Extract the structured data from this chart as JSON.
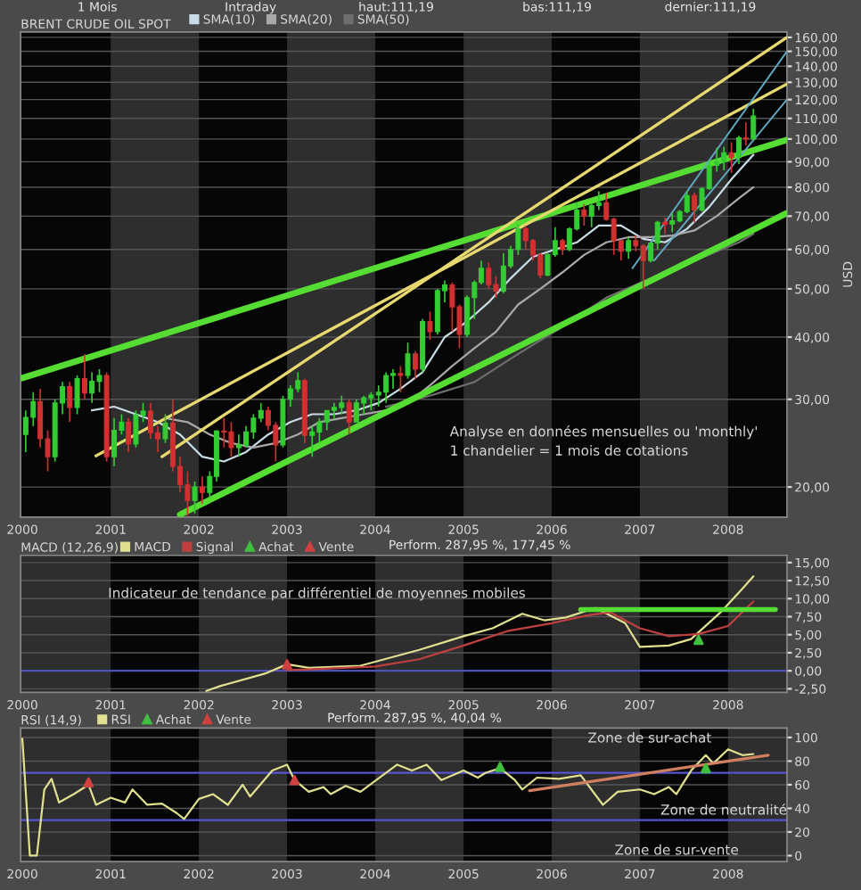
{
  "chart_data": [
    {
      "type": "candlestick",
      "title": "BRENT CRUDE OIL SPOT",
      "ylabel": "USD",
      "legend": "top left",
      "grid": "y",
      "log": true,
      "annotations": [
        "1 Mois",
        "Intraday",
        "haut:111,19",
        "bas:111,19",
        "dernier:111,19",
        "Analyse en données mensuelles ou 'monthly'",
        "1 chandelier = 1 mois de cotations"
      ],
      "xlim": [
        "1999-12-25",
        "2008-09-01"
      ],
      "xticks": [
        {
          "value": "2000-01-01",
          "label": "2000"
        },
        {
          "value": "2001-01-01",
          "label": "2001"
        },
        {
          "value": "2002-01-01",
          "label": "2002"
        },
        {
          "value": "2003-01-01",
          "label": "2003"
        },
        {
          "value": "2004-01-01",
          "label": "2004"
        },
        {
          "value": "2005-01-01",
          "label": "2005"
        },
        {
          "value": "2006-01-01",
          "label": "2006"
        },
        {
          "value": "2007-01-01",
          "label": "2007"
        },
        {
          "value": "2008-01-01",
          "label": "2008"
        }
      ],
      "ylim": [
        17.4,
        164
      ],
      "yticks": [
        {
          "value": 20,
          "label": "20,00"
        },
        {
          "value": 30,
          "label": "30,00"
        },
        {
          "value": 40,
          "label": "40,00"
        },
        {
          "value": 50,
          "label": "50,00"
        },
        {
          "value": 60,
          "label": "60,00"
        },
        {
          "value": 70,
          "label": "70,00"
        },
        {
          "value": 80,
          "label": "80,00"
        },
        {
          "value": 90,
          "label": "90,00"
        },
        {
          "value": 100,
          "label": "100,00"
        },
        {
          "value": 110,
          "label": "110,00"
        },
        {
          "value": 120,
          "label": "120,00"
        },
        {
          "value": 130,
          "label": "130,00"
        },
        {
          "value": 140,
          "label": "140,00"
        },
        {
          "value": 150,
          "label": "150,00"
        },
        {
          "value": 160,
          "label": "160,00"
        }
      ],
      "bands": [
        {
          "axis": "x",
          "from": "2001-01-01",
          "to": "2002-01-01",
          "color": "#2e2e2e"
        },
        {
          "axis": "x",
          "from": "2003-01-01",
          "to": "2004-01-01",
          "color": "#2e2e2e"
        },
        {
          "axis": "x",
          "from": "2005-01-01",
          "to": "2006-01-01",
          "color": "#2e2e2e"
        },
        {
          "axis": "x",
          "from": "2007-01-01",
          "to": "2008-01-01",
          "color": "#2e2e2e"
        }
      ],
      "colors": [
        "#33cc33",
        "#33cc33",
        "#d03030",
        "#d03030",
        "#33cc33",
        "#33cc33",
        "#d03030",
        "#33cc33",
        "#d03030",
        "#33cc33",
        "#33cc33",
        "#d03030",
        "#33cc33",
        "#33cc33",
        "#d03030",
        "#33cc33",
        "#33cc33",
        "#d03030",
        "#d03030",
        "#33cc33",
        "#d03030",
        "#d03030",
        "#d03030",
        "#33cc33",
        "#d03030",
        "#33cc33",
        "#33cc33",
        "#d03030",
        "#d03030",
        "#33cc33",
        "#33cc33",
        "#33cc33",
        "#33cc33",
        "#d03030",
        "#d03030",
        "#33cc33",
        "#33cc33",
        "#33cc33",
        "#d03030",
        "#33cc33",
        "#33cc33",
        "#33cc33",
        "#33cc33",
        "#33cc33",
        "#d03030",
        "#33cc33",
        "#33cc33",
        "#33cc33",
        "#33cc33",
        "#33cc33",
        "#33cc33",
        "#d03030",
        "#33cc33",
        "#d03030",
        "#33cc33",
        "#d03030",
        "#33cc33",
        "#33cc33",
        "#d03030",
        "#d03030",
        "#33cc33",
        "#33cc33",
        "#33cc33",
        "#d03030",
        "#d03030",
        "#33cc33",
        "#33cc33",
        "#33cc33",
        "#d03030",
        "#d03030",
        "#d03030",
        "#33cc33",
        "#33cc33",
        "#d03030",
        "#33cc33",
        "#33cc33",
        "#d03030",
        "#33cc33",
        "#33cc33",
        "#d03030",
        "#d03030",
        "#d03030",
        "#33cc33",
        "#d03030",
        "#d03030",
        "#33cc33",
        "#33cc33",
        "#d03030",
        "#33cc33",
        "#33cc33",
        "#33cc33",
        "#d03030",
        "#33cc33",
        "#33cc33",
        "#33cc33",
        "#33cc33",
        "#d03030",
        "#33cc33",
        "#d03030",
        "#33cc33"
      ],
      "x": [
        "2000-01-15",
        "2000-02-15",
        "2000-03-15",
        "2000-04-15",
        "2000-05-15",
        "2000-06-15",
        "2000-07-15",
        "2000-08-15",
        "2000-09-15",
        "2000-10-15",
        "2000-11-15",
        "2000-12-15",
        "2001-01-15",
        "2001-02-15",
        "2001-03-15",
        "2001-04-15",
        "2001-05-15",
        "2001-06-15",
        "2001-07-15",
        "2001-08-15",
        "2001-09-15",
        "2001-10-15",
        "2001-11-15",
        "2001-12-15",
        "2002-01-15",
        "2002-02-15",
        "2002-03-15",
        "2002-04-15",
        "2002-05-15",
        "2002-06-15",
        "2002-07-15",
        "2002-08-15",
        "2002-09-15",
        "2002-10-15",
        "2002-11-15",
        "2002-12-15",
        "2003-01-15",
        "2003-02-15",
        "2003-03-15",
        "2003-04-15",
        "2003-05-15",
        "2003-06-15",
        "2003-07-15",
        "2003-08-15",
        "2003-09-15",
        "2003-10-15",
        "2003-11-15",
        "2003-12-15",
        "2004-01-15",
        "2004-02-15",
        "2004-03-15",
        "2004-04-15",
        "2004-05-15",
        "2004-06-15",
        "2004-07-15",
        "2004-08-15",
        "2004-09-15",
        "2004-10-15",
        "2004-11-15",
        "2004-12-15",
        "2005-01-15",
        "2005-02-15",
        "2005-03-15",
        "2005-04-15",
        "2005-05-15",
        "2005-06-15",
        "2005-07-15",
        "2005-08-15",
        "2005-09-15",
        "2005-10-15",
        "2005-11-15",
        "2005-12-15",
        "2006-01-15",
        "2006-02-15",
        "2006-03-15",
        "2006-04-15",
        "2006-05-15",
        "2006-06-15",
        "2006-07-15",
        "2006-08-15",
        "2006-09-15",
        "2006-10-15",
        "2006-11-15",
        "2006-12-15",
        "2007-01-15",
        "2007-02-15",
        "2007-03-15",
        "2007-04-15",
        "2007-05-15",
        "2007-06-15",
        "2007-07-15",
        "2007-08-15",
        "2007-09-15",
        "2007-10-15",
        "2007-11-15",
        "2007-12-15",
        "2008-01-15",
        "2008-02-15",
        "2008-03-15",
        "2008-04-15"
      ],
      "ohlc": [
        [
          25.5,
          28.5,
          23.5,
          27.6
        ],
        [
          27.6,
          31.0,
          26.5,
          29.7
        ],
        [
          29.7,
          31.5,
          24.0,
          25.0
        ],
        [
          25.0,
          26.0,
          21.5,
          23.0
        ],
        [
          23.0,
          30.0,
          22.5,
          29.5
        ],
        [
          29.5,
          32.5,
          28.0,
          31.8
        ],
        [
          31.8,
          32.5,
          27.0,
          28.9
        ],
        [
          28.9,
          33.5,
          28.0,
          33.0
        ],
        [
          33.0,
          37.0,
          30.0,
          30.9
        ],
        [
          30.9,
          34.0,
          29.5,
          32.6
        ],
        [
          32.6,
          34.5,
          31.0,
          33.5
        ],
        [
          33.5,
          34.0,
          22.5,
          23.0
        ],
        [
          23.0,
          27.5,
          22.0,
          26.0
        ],
        [
          26.0,
          28.0,
          25.5,
          27.0
        ],
        [
          27.0,
          27.5,
          23.5,
          24.4
        ],
        [
          24.4,
          28.5,
          24.0,
          27.9
        ],
        [
          27.9,
          29.5,
          27.0,
          28.4
        ],
        [
          28.4,
          29.5,
          25.0,
          25.7
        ],
        [
          25.7,
          26.5,
          23.5,
          25.0
        ],
        [
          25.0,
          28.0,
          24.5,
          26.9
        ],
        [
          26.9,
          30.0,
          21.5,
          22.0
        ],
        [
          22.0,
          23.0,
          19.5,
          20.2
        ],
        [
          20.2,
          21.5,
          17.5,
          18.8
        ],
        [
          18.8,
          20.5,
          17.7,
          20.0
        ],
        [
          20.0,
          21.0,
          18.5,
          19.5
        ],
        [
          19.5,
          21.5,
          19.0,
          21.0
        ],
        [
          21.0,
          26.0,
          20.5,
          25.9
        ],
        [
          25.9,
          27.5,
          24.0,
          25.8
        ],
        [
          25.8,
          27.0,
          23.0,
          24.0
        ],
        [
          24.0,
          25.5,
          23.0,
          24.3
        ],
        [
          24.3,
          26.5,
          24.0,
          25.8
        ],
        [
          25.8,
          28.0,
          25.0,
          27.5
        ],
        [
          27.5,
          29.5,
          27.0,
          28.5
        ],
        [
          28.5,
          29.0,
          26.0,
          26.6
        ],
        [
          26.6,
          27.0,
          22.5,
          24.3
        ],
        [
          24.3,
          30.5,
          24.0,
          30.0
        ],
        [
          30.0,
          32.0,
          29.0,
          31.5
        ],
        [
          31.5,
          34.0,
          31.0,
          32.7
        ],
        [
          32.7,
          33.0,
          24.5,
          25.4
        ],
        [
          25.4,
          26.5,
          23.0,
          25.8
        ],
        [
          25.8,
          27.5,
          24.5,
          27.0
        ],
        [
          27.0,
          28.5,
          26.0,
          28.5
        ],
        [
          28.5,
          29.5,
          27.5,
          28.9
        ],
        [
          28.9,
          30.5,
          28.0,
          29.5
        ],
        [
          29.5,
          30.0,
          25.5,
          27.0
        ],
        [
          27.0,
          30.0,
          27.0,
          29.5
        ],
        [
          29.5,
          30.5,
          28.0,
          30.2
        ],
        [
          30.2,
          31.0,
          28.5,
          30.6
        ],
        [
          30.6,
          32.0,
          29.0,
          31.0
        ],
        [
          31.0,
          34.0,
          29.5,
          33.5
        ],
        [
          33.5,
          34.5,
          31.5,
          33.8
        ],
        [
          33.8,
          35.0,
          31.0,
          33.5
        ],
        [
          33.5,
          39.0,
          33.0,
          37.0
        ],
        [
          37.0,
          37.5,
          33.0,
          34.5
        ],
        [
          34.5,
          43.5,
          34.0,
          43.0
        ],
        [
          43.0,
          45.0,
          39.5,
          41.0
        ],
        [
          41.0,
          50.0,
          40.5,
          49.6
        ],
        [
          49.6,
          52.0,
          47.0,
          50.9
        ],
        [
          50.9,
          51.5,
          41.0,
          46.0
        ],
        [
          46.0,
          46.5,
          38.0,
          40.5
        ],
        [
          40.5,
          48.5,
          40.0,
          48.0
        ],
        [
          48.0,
          52.0,
          43.5,
          51.5
        ],
        [
          51.5,
          57.0,
          51.0,
          55.0
        ],
        [
          55.0,
          56.5,
          50.0,
          51.0
        ],
        [
          51.0,
          53.0,
          48.0,
          49.5
        ],
        [
          49.5,
          59.0,
          49.0,
          55.6
        ],
        [
          55.6,
          61.0,
          55.0,
          60.0
        ],
        [
          60.0,
          67.5,
          58.5,
          66.0
        ],
        [
          66.0,
          67.0,
          60.0,
          62.5
        ],
        [
          62.5,
          63.0,
          57.0,
          58.5
        ],
        [
          58.5,
          59.0,
          52.5,
          53.3
        ],
        [
          53.3,
          59.0,
          53.0,
          58.6
        ],
        [
          58.6,
          66.5,
          58.0,
          62.5
        ],
        [
          62.5,
          63.0,
          58.5,
          60.0
        ],
        [
          60.0,
          66.5,
          59.5,
          66.0
        ],
        [
          66.0,
          74.5,
          65.5,
          72.0
        ],
        [
          72.0,
          74.0,
          67.0,
          70.0
        ],
        [
          70.0,
          74.0,
          66.5,
          73.5
        ],
        [
          73.5,
          78.5,
          72.0,
          74.5
        ],
        [
          74.5,
          78.0,
          68.5,
          69.0
        ],
        [
          69.0,
          69.5,
          58.5,
          62.5
        ],
        [
          62.5,
          62.5,
          57.0,
          59.5
        ],
        [
          59.5,
          63.5,
          57.5,
          62.5
        ],
        [
          62.5,
          64.0,
          59.5,
          61.0
        ],
        [
          61.0,
          61.5,
          50.0,
          57.0
        ],
        [
          57.0,
          62.0,
          56.5,
          61.8
        ],
        [
          61.8,
          68.5,
          60.0,
          68.0
        ],
        [
          68.0,
          69.5,
          64.5,
          67.5
        ],
        [
          67.5,
          71.0,
          65.0,
          68.5
        ],
        [
          68.5,
          72.0,
          68.0,
          71.5
        ],
        [
          71.5,
          78.5,
          71.0,
          77.0
        ],
        [
          77.0,
          78.0,
          68.0,
          72.0
        ],
        [
          72.0,
          80.0,
          71.5,
          79.5
        ],
        [
          79.5,
          90.5,
          79.0,
          88.5
        ],
        [
          88.5,
          96.0,
          86.0,
          90.0
        ],
        [
          90.0,
          96.5,
          86.5,
          93.8
        ],
        [
          93.8,
          98.5,
          85.5,
          91.8
        ],
        [
          91.8,
          101.5,
          89.0,
          100.5
        ],
        [
          100.5,
          108.0,
          97.0,
          100.0
        ],
        [
          100.0,
          115.0,
          99.5,
          111.2
        ]
      ],
      "series": [
        {
          "name": "SMA(10)",
          "type": "line",
          "color": "#c8dce6",
          "x": [
            "2000-10-15",
            "2001-01-15",
            "2001-04-15",
            "2001-07-15",
            "2001-10-15",
            "2002-01-15",
            "2002-04-15",
            "2002-07-15",
            "2002-10-15",
            "2003-01-15",
            "2003-04-15",
            "2003-07-15",
            "2003-10-15",
            "2004-01-15",
            "2004-04-15",
            "2004-07-15",
            "2004-10-15",
            "2005-01-15",
            "2005-04-15",
            "2005-07-15",
            "2005-10-15",
            "2006-01-15",
            "2006-04-15",
            "2006-07-15",
            "2006-10-15",
            "2007-01-15",
            "2007-04-15",
            "2007-07-15",
            "2007-10-15",
            "2008-01-15",
            "2008-04-15"
          ],
          "values": [
            28.5,
            29.0,
            28.0,
            27.0,
            25.5,
            23.0,
            22.5,
            23.5,
            25.5,
            27.0,
            28.0,
            28.0,
            28.5,
            29.5,
            31.5,
            34.0,
            40.0,
            43.0,
            47.0,
            52.5,
            58.0,
            60.0,
            62.0,
            67.0,
            67.0,
            63.0,
            62.0,
            66.0,
            73.0,
            83.0,
            93.0
          ]
        },
        {
          "name": "SMA(20)",
          "type": "line",
          "color": "#a8a8a8",
          "x": [
            "2001-08-15",
            "2001-11-15",
            "2002-02-15",
            "2002-05-15",
            "2002-08-15",
            "2002-11-15",
            "2003-02-15",
            "2003-05-15",
            "2003-08-15",
            "2003-11-15",
            "2004-02-15",
            "2004-05-15",
            "2004-08-15",
            "2004-11-15",
            "2005-02-15",
            "2005-05-15",
            "2005-08-15",
            "2005-11-15",
            "2006-02-15",
            "2006-05-15",
            "2006-08-15",
            "2006-11-15",
            "2007-02-15",
            "2007-05-15",
            "2007-08-15",
            "2007-11-15",
            "2008-02-15",
            "2008-04-15"
          ],
          "values": [
            27.5,
            27.0,
            25.5,
            24.5,
            24.0,
            24.5,
            25.5,
            27.0,
            27.5,
            28.0,
            28.5,
            29.5,
            32.0,
            35.0,
            38.0,
            41.0,
            46.5,
            50.0,
            54.0,
            58.5,
            62.0,
            63.5,
            63.5,
            64.0,
            65.5,
            70.0,
            76.0,
            80.0
          ]
        },
        {
          "name": "SMA(50)",
          "type": "line",
          "color": "#6e6e6e",
          "x": [
            "2004-02-15",
            "2004-08-15",
            "2005-02-15",
            "2005-08-15",
            "2006-02-15",
            "2006-08-15",
            "2007-02-15",
            "2007-08-15",
            "2008-02-15",
            "2008-04-15"
          ],
          "values": [
            29.0,
            30.5,
            32.5,
            37.0,
            42.0,
            48.0,
            52.5,
            57.0,
            62.0,
            64.5
          ]
        },
        {
          "type": "line",
          "color": "#55dd33",
          "x": [
            "2000-01-01",
            "2008-09-01"
          ],
          "values": [
            33.1,
            99.6
          ]
        },
        {
          "type": "line",
          "color": "#55dd33",
          "x": [
            "2001-10-15",
            "2008-09-01"
          ],
          "values": [
            17.6,
            71
          ]
        },
        {
          "type": "line",
          "color": "#e8d870",
          "x": [
            "2000-11-01",
            "2008-09-01"
          ],
          "values": [
            23.1,
            129
          ]
        },
        {
          "type": "line",
          "color": "#e8d870",
          "x": [
            "2001-08-01",
            "2008-09-01"
          ],
          "values": [
            23,
            160
          ]
        },
        {
          "type": "line",
          "color": "#60a8c0",
          "x": [
            "2006-12-01",
            "2008-09-01"
          ],
          "values": [
            55,
            150
          ]
        },
        {
          "type": "line",
          "color": "#60a8c0",
          "x": [
            "2007-03-01",
            "2008-09-01"
          ],
          "values": [
            57,
            120
          ]
        }
      ]
    },
    {
      "type": "line",
      "title": "MACD (12,26,9)",
      "legend": "top left",
      "grid": "y",
      "annotations": [
        "Perform. 287,95 %, 177,45 %",
        "Indicateur de tendance par différentiel de moyennes mobiles"
      ],
      "xlim": [
        "1999-12-25",
        "2008-09-01"
      ],
      "xticks": [
        {
          "value": "2000-01-01",
          "label": "2000"
        },
        {
          "value": "2001-01-01",
          "label": "2001"
        },
        {
          "value": "2002-01-01",
          "label": "2002"
        },
        {
          "value": "2003-01-01",
          "label": "2003"
        },
        {
          "value": "2004-01-01",
          "label": "2004"
        },
        {
          "value": "2005-01-01",
          "label": "2005"
        },
        {
          "value": "2006-01-01",
          "label": "2006"
        },
        {
          "value": "2007-01-01",
          "label": "2007"
        },
        {
          "value": "2008-01-01",
          "label": "2008"
        }
      ],
      "ylim": [
        -3.0,
        16.0
      ],
      "yticks": [
        {
          "value": -2.5,
          "label": "-2,50"
        },
        {
          "value": 0,
          "label": "0,00"
        },
        {
          "value": 2.5,
          "label": "2,50"
        },
        {
          "value": 5,
          "label": "5,00"
        },
        {
          "value": 7.5,
          "label": "7,50"
        },
        {
          "value": 10,
          "label": "10,00"
        },
        {
          "value": 12.5,
          "label": "12,50"
        },
        {
          "value": 15,
          "label": "15,00"
        }
      ],
      "ref_lines": [
        {
          "axis": "y",
          "value": 0,
          "color": "#5050b0"
        }
      ],
      "bands": [
        {
          "axis": "x",
          "from": "1999-12-25",
          "to": "2001-01-01",
          "color": "#2e2e2e"
        },
        {
          "axis": "x",
          "from": "2002-01-01",
          "to": "2003-01-01",
          "color": "#2e2e2e"
        },
        {
          "axis": "x",
          "from": "2004-01-01",
          "to": "2005-01-01",
          "color": "#2e2e2e"
        },
        {
          "axis": "x",
          "from": "2006-01-01",
          "to": "2007-01-01",
          "color": "#2e2e2e"
        },
        {
          "axis": "x",
          "from": "2008-01-01",
          "to": "2008-09-01",
          "color": "#2e2e2e"
        }
      ],
      "series": [
        {
          "name": "MACD",
          "type": "line",
          "color": "#e0e090",
          "x": [
            "2002-02-01",
            "2002-04-01",
            "2002-10-01",
            "2003-01-01",
            "2003-04-01",
            "2003-11-01",
            "2004-07-01",
            "2005-01-01",
            "2005-05-01",
            "2005-09-01",
            "2005-12-01",
            "2006-03-01",
            "2006-07-01",
            "2006-11-01",
            "2007-01-01",
            "2007-05-01",
            "2007-08-01",
            "2007-12-01",
            "2008-03-01",
            "2008-04-15"
          ],
          "values": [
            -2.8,
            -2.1,
            -0.4,
            0.9,
            0.4,
            0.7,
            2.9,
            4.8,
            5.9,
            7.9,
            7.0,
            7.4,
            8.7,
            6.6,
            3.3,
            3.5,
            4.4,
            8.1,
            11.4,
            13.1
          ]
        },
        {
          "name": "Signal",
          "type": "line",
          "color": "#c04040",
          "x": [
            "2003-01-01",
            "2003-04-01",
            "2004-01-01",
            "2004-07-01",
            "2005-01-01",
            "2005-07-01",
            "2006-01-01",
            "2006-06-01",
            "2006-09-01",
            "2007-01-01",
            "2007-05-01",
            "2007-09-01",
            "2008-01-01",
            "2008-04-15"
          ],
          "values": [
            0.1,
            0.2,
            0.6,
            1.6,
            3.5,
            5.5,
            6.6,
            7.7,
            8.1,
            5.9,
            4.8,
            5.1,
            6.2,
            9.6
          ]
        },
        {
          "name": "Achat",
          "type": "scatter",
          "marker": "triangle",
          "color": "#40c040",
          "x": [
            "2007-09-01"
          ],
          "values": [
            4.3
          ]
        },
        {
          "name": "Vente",
          "type": "scatter",
          "marker": "triangle",
          "color": "#d04040",
          "x": [
            "2003-01-01"
          ],
          "values": [
            0.9
          ]
        },
        {
          "type": "line",
          "color": "#55dd33",
          "x": [
            "2006-05-01",
            "2008-07-15"
          ],
          "values": [
            8.5,
            8.5
          ]
        }
      ]
    },
    {
      "type": "line",
      "title": "RSI (14,9)",
      "legend": "top left",
      "grid": "y",
      "annotations": [
        "Perform. 287,95 %, 40,04 %",
        "Zone de sur-achat",
        "Zone de neutralité",
        "Zone de sur-vente"
      ],
      "xlim": [
        "1999-12-25",
        "2008-09-01"
      ],
      "xticks": [
        {
          "value": "2000-01-01",
          "label": "2000"
        },
        {
          "value": "2001-01-01",
          "label": "2001"
        },
        {
          "value": "2002-01-01",
          "label": "2002"
        },
        {
          "value": "2003-01-01",
          "label": "2003"
        },
        {
          "value": "2004-01-01",
          "label": "2004"
        },
        {
          "value": "2005-01-01",
          "label": "2005"
        },
        {
          "value": "2006-01-01",
          "label": "2006"
        },
        {
          "value": "2007-01-01",
          "label": "2007"
        },
        {
          "value": "2008-01-01",
          "label": "2008"
        }
      ],
      "ylim": [
        -5,
        108
      ],
      "yticks": [
        0,
        20,
        40,
        60,
        80,
        100
      ],
      "ref_lines": [
        {
          "axis": "y",
          "value": 30,
          "color": "#5555cc"
        },
        {
          "axis": "y",
          "value": 70,
          "color": "#5555cc"
        }
      ],
      "bands": [
        {
          "axis": "x",
          "from": "1999-12-25",
          "to": "2001-01-01",
          "color": "#2e2e2e"
        },
        {
          "axis": "x",
          "from": "2002-01-01",
          "to": "2003-01-01",
          "color": "#2e2e2e"
        },
        {
          "axis": "x",
          "from": "2004-01-01",
          "to": "2005-01-01",
          "color": "#2e2e2e"
        },
        {
          "axis": "x",
          "from": "2006-01-01",
          "to": "2007-01-01",
          "color": "#2e2e2e"
        },
        {
          "axis": "x",
          "from": "2008-01-01",
          "to": "2008-09-01",
          "color": "#2e2e2e"
        }
      ],
      "series": [
        {
          "name": "RSI",
          "type": "line",
          "color": "#e0e090",
          "x": [
            "2000-01-01",
            "2000-02-01",
            "2000-03-01",
            "2000-04-01",
            "2000-05-01",
            "2000-06-01",
            "2000-08-01",
            "2000-10-01",
            "2000-11-01",
            "2001-01-01",
            "2001-03-01",
            "2001-04-01",
            "2001-06-01",
            "2001-08-01",
            "2001-10-01",
            "2001-11-01",
            "2002-01-01",
            "2002-03-01",
            "2002-05-01",
            "2002-07-01",
            "2002-08-01",
            "2002-11-01",
            "2003-01-01",
            "2003-02-01",
            "2003-04-01",
            "2003-06-01",
            "2003-07-01",
            "2003-09-01",
            "2003-11-01",
            "2004-02-01",
            "2004-04-01",
            "2004-06-01",
            "2004-08-01",
            "2004-10-01",
            "2005-01-01",
            "2005-03-01",
            "2005-04-01",
            "2005-06-01",
            "2005-08-01",
            "2005-09-01",
            "2005-11-01",
            "2006-02-01",
            "2006-05-01",
            "2006-08-01",
            "2006-10-01",
            "2007-01-01",
            "2007-03-01",
            "2007-05-01",
            "2007-06-01",
            "2007-08-01",
            "2007-10-01",
            "2007-11-01",
            "2008-01-01",
            "2008-03-01",
            "2008-04-15"
          ],
          "values": [
            99,
            0,
            0,
            56,
            65,
            45,
            52,
            60,
            43,
            49,
            45,
            56,
            43,
            44,
            36,
            31,
            48,
            52,
            43,
            60,
            50,
            72,
            77,
            64,
            54,
            58,
            52,
            59,
            54,
            68,
            77,
            72,
            77,
            64,
            72,
            66,
            70,
            74,
            64,
            56,
            66,
            65,
            68,
            43,
            54,
            56,
            52,
            58,
            52,
            72,
            85,
            78,
            90,
            85,
            86
          ]
        },
        {
          "name": "Achat",
          "type": "scatter",
          "marker": "triangle",
          "color": "#40c040",
          "x": [
            "2005-06-01",
            "2007-10-01"
          ],
          "values": [
            75,
            74
          ]
        },
        {
          "name": "Vente",
          "type": "scatter",
          "marker": "triangle",
          "color": "#d04040",
          "x": [
            "2000-10-01",
            "2003-02-01"
          ],
          "values": [
            62,
            64
          ]
        },
        {
          "type": "line",
          "color": "#d08060",
          "x": [
            "2005-10-01",
            "2008-06-15"
          ],
          "values": [
            55,
            85
          ]
        }
      ]
    }
  ]
}
